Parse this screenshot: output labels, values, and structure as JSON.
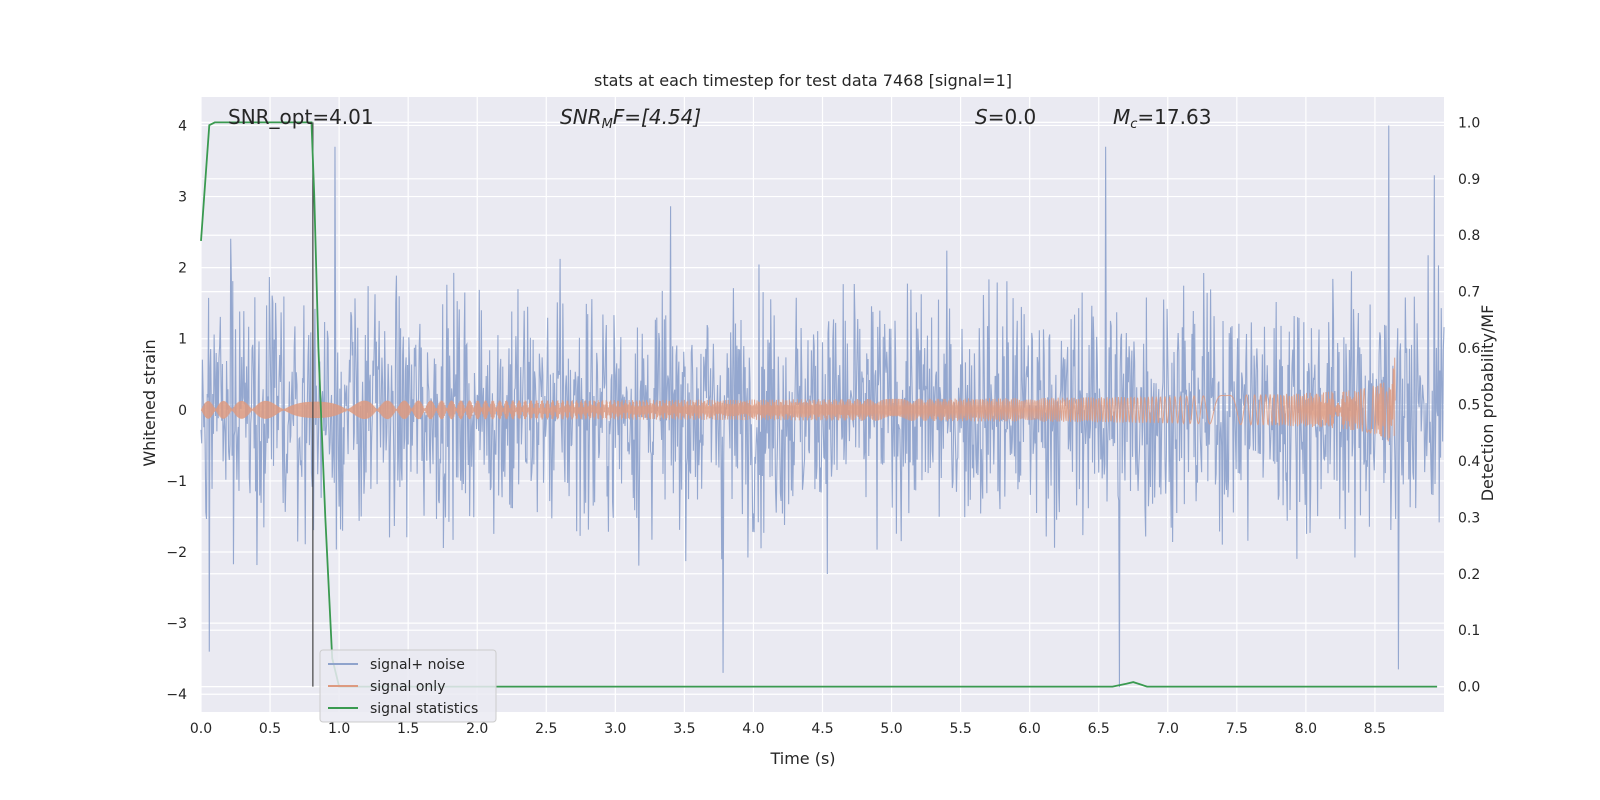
{
  "chart_data": {
    "type": "line",
    "title": "stats at each timestep for test data 7468 [signal=1]",
    "xlabel": "Time (s)",
    "ylabel_left": "Whitened strain",
    "ylabel_right": "Detection probability/MF",
    "xlim": [
      0.0,
      9.0
    ],
    "ylim_left": [
      -4.25,
      4.4
    ],
    "ylim_right": [
      -0.045,
      1.045
    ],
    "xticks": [
      "0.0",
      "0.5",
      "1.0",
      "1.5",
      "2.0",
      "2.5",
      "3.0",
      "3.5",
      "4.0",
      "4.5",
      "5.0",
      "5.5",
      "6.0",
      "6.5",
      "7.0",
      "7.5",
      "8.0",
      "8.5"
    ],
    "yticks_left": [
      "−4",
      "−3",
      "−2",
      "−1",
      "0",
      "1",
      "2",
      "3",
      "4"
    ],
    "yticks_right": [
      "0.0",
      "0.1",
      "0.2",
      "0.3",
      "0.4",
      "0.5",
      "0.6",
      "0.7",
      "0.8",
      "0.9",
      "1.0"
    ],
    "grid": true,
    "legend_position": "lower-left",
    "annotations": {
      "snr_opt": "SNR_opt=4.01",
      "snr_mf_base": "SNR",
      "snr_mf_sub": "M",
      "snr_mf_rest": "F=[4.54]",
      "s_sym": "S",
      "s_rest": "=0.0",
      "mc_sym": "M",
      "mc_sub": "c",
      "mc_rest": "=17.63"
    },
    "marker_line_x": 0.81,
    "series": [
      {
        "name": "signal+ noise",
        "color": "#8fa3cc",
        "axis": "left",
        "description_values": "whitened noise, envelope approx -2.5..3 with spikes to +4.0 (t≈8.6) and -4.0 (t≈6.65)"
      },
      {
        "name": "signal only",
        "color": "#dd9a80",
        "axis": "left",
        "chirp": {
          "start_amp": 0.03,
          "peak_amp": 0.85,
          "peak_time": 8.65
        }
      },
      {
        "name": "signal statistics",
        "color": "#3a9a50",
        "axis": "right",
        "x": [
          0.0,
          0.06,
          0.1,
          0.5,
          0.8,
          0.82,
          0.85,
          0.9,
          0.95,
          1.0,
          6.6,
          6.7,
          6.75,
          6.85,
          8.95
        ],
        "y": [
          0.79,
          0.995,
          1.0,
          1.0,
          1.0,
          0.87,
          0.6,
          0.3,
          0.05,
          0.0,
          0.0,
          0.005,
          0.008,
          0.0,
          0.0
        ]
      }
    ]
  }
}
